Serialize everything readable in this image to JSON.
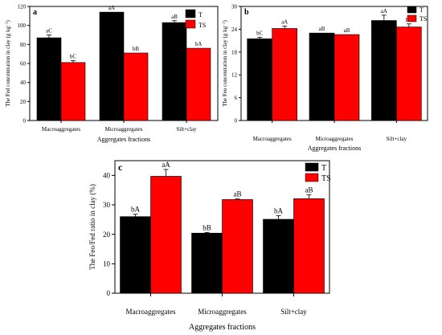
{
  "colors": {
    "T": "#000000",
    "TS": "#ff0000"
  },
  "chart_data": [
    {
      "id": "a",
      "type": "bar",
      "panel_label": "a",
      "ylabel": "The Fed concentration in clay (g kg",
      "ylabel_sup": "−1",
      "ylabel_close": ")",
      "xlabel": "Aggregates fractions",
      "categories": [
        "Macroaggregates",
        "Microaggregates",
        "Silt+clay"
      ],
      "ylim": [
        0,
        120
      ],
      "yticks": [
        0,
        20,
        40,
        60,
        80,
        100,
        120
      ],
      "legend": [
        "T",
        "TS"
      ],
      "legend_position": "top-right",
      "series": [
        {
          "name": "T",
          "values": [
            87,
            114,
            103
          ],
          "errors": [
            3,
            0,
            2
          ],
          "labels": [
            "aC",
            "aA",
            "aB"
          ]
        },
        {
          "name": "TS",
          "values": [
            61,
            71,
            76
          ],
          "errors": [
            2,
            0,
            0
          ],
          "labels": [
            "bC",
            "bB",
            "bA"
          ]
        }
      ]
    },
    {
      "id": "b",
      "type": "bar",
      "panel_label": "b",
      "ylabel": "The Feo concentration in clay (g kg",
      "ylabel_sup": "−1",
      "ylabel_close": ")",
      "xlabel": "Aggregates fractions",
      "categories": [
        "Macroaggregates",
        "Microaggregates",
        "Silt+clay"
      ],
      "ylim": [
        0,
        30
      ],
      "yticks": [
        0,
        6,
        12,
        18,
        24,
        30
      ],
      "legend": [
        "T",
        "TS"
      ],
      "legend_position": "top-right",
      "series": [
        {
          "name": "T",
          "values": [
            21.5,
            23.0,
            26.3
          ],
          "errors": [
            0.4,
            0,
            1.4
          ],
          "labels": [
            "bC",
            "aB",
            "aA"
          ]
        },
        {
          "name": "TS",
          "values": [
            24.2,
            22.6,
            24.6
          ],
          "errors": [
            0.6,
            0,
            0.8
          ],
          "labels": [
            "aA",
            "aB",
            "bA"
          ]
        }
      ]
    },
    {
      "id": "c",
      "type": "bar",
      "panel_label": "c",
      "ylabel": "The Feo/Fed ratio in clay (%)",
      "ylabel_sup": "",
      "ylabel_close": "",
      "xlabel": "Aggregates fractions",
      "categories": [
        "Macroaggregates",
        "Microaggregates",
        "Silt+clay"
      ],
      "ylim": [
        0,
        45
      ],
      "yticks": [
        0,
        10,
        20,
        30,
        40
      ],
      "legend": [
        "T",
        "TS"
      ],
      "legend_position": "top-right",
      "series": [
        {
          "name": "T",
          "values": [
            26.0,
            20.4,
            25.1
          ],
          "errors": [
            0.8,
            0.2,
            1.2
          ],
          "labels": [
            "bA",
            "bB",
            "bA"
          ]
        },
        {
          "name": "TS",
          "values": [
            39.7,
            31.8,
            32.1
          ],
          "errors": [
            2.3,
            0.2,
            1.3
          ],
          "labels": [
            "aA",
            "aB",
            "aB"
          ]
        }
      ]
    }
  ]
}
